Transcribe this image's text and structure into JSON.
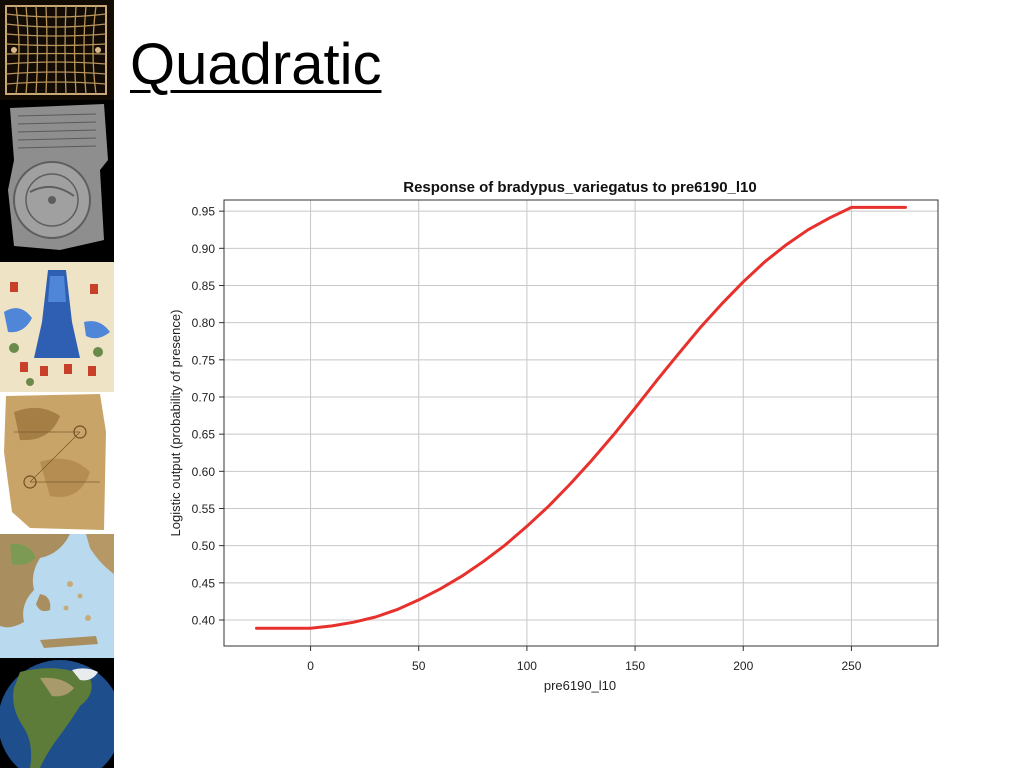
{
  "slide": {
    "title": "Quadratic"
  },
  "thumbnails": [
    {
      "icon": "grid-map-icon"
    },
    {
      "icon": "clay-tablet-map-icon"
    },
    {
      "icon": "illustrated-map-icon"
    },
    {
      "icon": "parchment-map-icon"
    },
    {
      "icon": "greece-relief-map-icon"
    },
    {
      "icon": "globe-north-america-icon"
    }
  ],
  "colors": {
    "curve": "#e8302c",
    "grid": "#c8c8c8",
    "axis": "#333333"
  },
  "chart_data": {
    "type": "line",
    "title": "Response of bradypus_variegatus to pre6190_l10",
    "xlabel": "pre6190_l10",
    "ylabel": "Logistic output (probability of presence)",
    "xlim": [
      -40,
      290
    ],
    "ylim": [
      0.365,
      0.965
    ],
    "xticks": [
      0,
      50,
      100,
      150,
      200,
      250
    ],
    "xtick_labels": [
      "0",
      "50",
      "100",
      "150",
      "200",
      "250"
    ],
    "yticks": [
      0.4,
      0.45,
      0.5,
      0.55,
      0.6,
      0.65,
      0.7,
      0.75,
      0.8,
      0.85,
      0.9,
      0.95
    ],
    "ytick_labels": [
      "0.40",
      "0.45",
      "0.50",
      "0.55",
      "0.60",
      "0.65",
      "0.70",
      "0.75",
      "0.80",
      "0.85",
      "0.90",
      "0.95"
    ],
    "grid": true,
    "series": [
      {
        "x": [
          -25,
          0,
          10,
          20,
          30,
          40,
          50,
          60,
          70,
          80,
          90,
          100,
          110,
          120,
          130,
          140,
          150,
          160,
          170,
          180,
          190,
          200,
          210,
          220,
          230,
          240,
          250,
          275
        ],
        "y": [
          0.389,
          0.389,
          0.392,
          0.397,
          0.404,
          0.414,
          0.427,
          0.442,
          0.459,
          0.479,
          0.501,
          0.526,
          0.553,
          0.583,
          0.615,
          0.649,
          0.685,
          0.722,
          0.758,
          0.793,
          0.825,
          0.855,
          0.882,
          0.905,
          0.925,
          0.941,
          0.955,
          0.955
        ]
      }
    ]
  }
}
